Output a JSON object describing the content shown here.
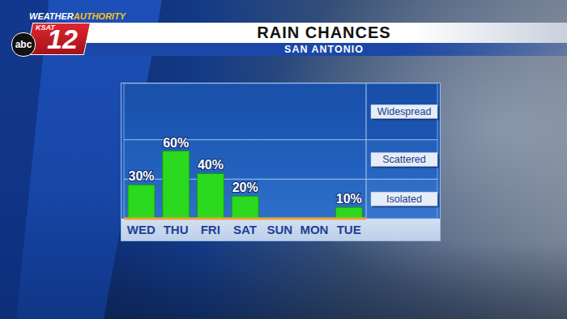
{
  "chart_data": {
    "type": "bar",
    "title": "RAIN CHANCES",
    "subtitle": "SAN ANTONIO",
    "categories": [
      "WED",
      "THU",
      "FRI",
      "SAT",
      "SUN",
      "MON",
      "TUE"
    ],
    "values": [
      30,
      60,
      40,
      20,
      null,
      null,
      10
    ],
    "value_labels": [
      "30%",
      "60%",
      "40%",
      "20%",
      null,
      null,
      "10%"
    ],
    "color": "#2bd91e",
    "ylim": [
      0,
      120
    ],
    "bands": [
      {
        "label": "Isolated",
        "from": 0,
        "to": 35
      },
      {
        "label": "Scattered",
        "from": 35,
        "to": 70
      },
      {
        "label": "Widespread",
        "from": 70,
        "to": 120
      }
    ],
    "grid": false,
    "data_labels": true,
    "tick_labels": "x"
  },
  "branding": {
    "tagline_left": "WEATHER",
    "tagline_right": "AUTHORITY",
    "station": "KSAT",
    "channel": "12",
    "network": "abc"
  }
}
